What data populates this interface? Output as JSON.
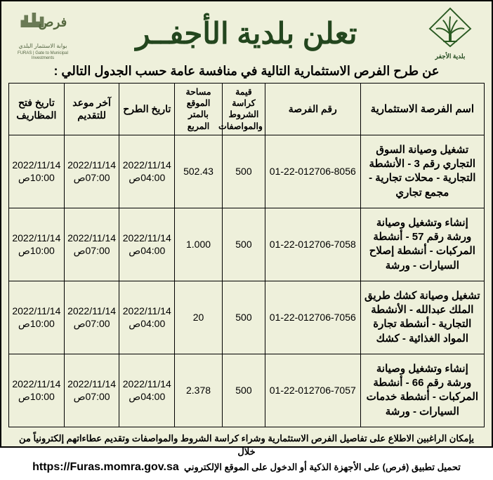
{
  "header": {
    "title": "تعلن بلدية الأجفــر",
    "subtitle": "عن طرح الفرص الاستثمارية التالية في منافسة عامة حسب الجدول التالي :",
    "right_logo_label": "بلدية الأجفر",
    "left_logo_top": "فرص",
    "left_logo_sub1": "بوابة الاستثمار البلدي",
    "left_logo_sub2": "FURAS | Gate to Municipal Investments"
  },
  "table": {
    "columns": [
      "اسم الفرصة الاستثمارية",
      "رقم الفرصة",
      "قيمة كراسة الشروط والمواصفات",
      "مساحة الموقع بالمتر المربع",
      "تاريخ الطرح",
      "آخر موعد للتقديم",
      "تاريخ فتح المظاريف"
    ],
    "rows": [
      {
        "name": "تشغيل وصيانة السوق التجاري رقم 3 - الأنشطة التجارية - محلات تجارية - مجمع تجاري",
        "number": "01-22-012706-8056",
        "price": "500",
        "area": "502.43",
        "d1_date": "2022/11/14",
        "d1_time": "04:00ص",
        "d2_date": "2022/11/14",
        "d2_time": "07:00ص",
        "d3_date": "2022/11/14",
        "d3_time": "10:00ص"
      },
      {
        "name": "إنشاء وتشغيل وصيانة ورشة رقم 57 - أنشطة المركبات - أنشطة إصلاح السيارات - ورشة",
        "number": "01-22-012706-7058",
        "price": "500",
        "area": "1.000",
        "d1_date": "2022/11/14",
        "d1_time": "04:00ص",
        "d2_date": "2022/11/14",
        "d2_time": "07:00ص",
        "d3_date": "2022/11/14",
        "d3_time": "10:00ص"
      },
      {
        "name": "تشغيل وصيانة كشك طريق الملك عبدالله - الأنشطة التجارية - أنشطة تجارة المواد الغذائية - كشك",
        "number": "01-22-012706-7056",
        "price": "500",
        "area": "20",
        "d1_date": "2022/11/14",
        "d1_time": "04:00ص",
        "d2_date": "2022/11/14",
        "d2_time": "07:00ص",
        "d3_date": "2022/11/14",
        "d3_time": "10:00ص"
      },
      {
        "name": "إنشاء وتشغيل وصيانة ورشة رقم 66 - أنشطة المركبات - أنشطة خدمات السيارات - ورشة",
        "number": "01-22-012706-7057",
        "price": "500",
        "area": "2.378",
        "d1_date": "2022/11/14",
        "d1_time": "04:00ص",
        "d2_date": "2022/11/14",
        "d2_time": "07:00ص",
        "d3_date": "2022/11/14",
        "d3_time": "10:00ص"
      }
    ]
  },
  "footer": {
    "line1": "يإمكان الراغبين الاطلاع على تفاصيل الفرص الاستثمارية وشراء كراسة الشروط والمواصفات وتقديم عطاءاتهم إلكترونياً من خلال",
    "line2": "تحميل تطبيق (فرص) على الأجهزة الذكية أو الدخول على الموقع الإلكتروني",
    "url": "https://Furas.momra.gov.sa"
  },
  "style": {
    "background_color": "#eef0db",
    "border_color": "#000000",
    "title_color": "#23461e"
  }
}
